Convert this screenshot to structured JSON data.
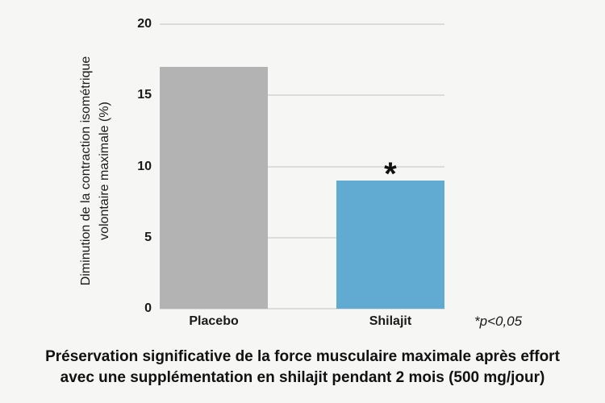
{
  "figure": {
    "background": "#f6f6f5",
    "gridline_color": "#dcdcdc"
  },
  "chart_data": {
    "type": "bar",
    "categories": [
      "Placebo",
      "Shilajit"
    ],
    "values": [
      17,
      9
    ],
    "bar_colors": [
      "#b3b3b3",
      "#61abd2"
    ],
    "ylabel": "Diminution de la contraction isométrique volontaire maximale (%)",
    "ylabel_lines": [
      "Diminution de la contraction isométrique",
      "volontaire maximale (%)"
    ],
    "xlabel": "",
    "title": "",
    "ylim": [
      0,
      20
    ],
    "yticks": [
      0,
      5,
      10,
      15,
      20
    ],
    "grid": "horizontal",
    "legend": "none",
    "significance": {
      "category": "Shilajit",
      "marker": "*",
      "note": "*p<0,05"
    }
  },
  "caption": {
    "lines": [
      "Préservation significative de la force musculaire maximale après effort",
      "avec une supplémentation en shilajit pendant 2 mois (500 mg/jour)"
    ]
  }
}
